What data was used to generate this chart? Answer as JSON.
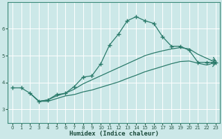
{
  "xlabel": "Humidex (Indice chaleur)",
  "bg_color": "#cce8e8",
  "grid_color": "#ffffff",
  "line_color": "#2a7a6a",
  "ylim": [
    2.5,
    7.0
  ],
  "xlim": [
    -0.5,
    23.5
  ],
  "yticks": [
    3,
    4,
    5,
    6
  ],
  "xticks": [
    0,
    1,
    2,
    3,
    4,
    5,
    6,
    7,
    8,
    9,
    10,
    11,
    12,
    13,
    14,
    15,
    16,
    17,
    18,
    19,
    20,
    21,
    22,
    23
  ],
  "line_main_x": [
    0,
    1,
    2,
    3,
    4,
    5,
    6,
    7,
    8,
    9,
    10,
    11,
    12,
    13,
    14,
    15,
    16,
    17,
    18,
    19,
    20,
    21,
    22,
    23
  ],
  "line_main_y": [
    3.8,
    3.8,
    3.6,
    3.3,
    3.35,
    3.55,
    3.6,
    3.85,
    4.2,
    4.25,
    4.7,
    5.4,
    5.8,
    6.3,
    6.45,
    6.3,
    6.2,
    5.7,
    5.35,
    5.35,
    5.2,
    4.75,
    4.75,
    4.75
  ],
  "line_upper_x": [
    2,
    3,
    4,
    5,
    6,
    7,
    8,
    9,
    10,
    11,
    12,
    13,
    14,
    15,
    16,
    17,
    18,
    19,
    20,
    21,
    22,
    23
  ],
  "line_upper_y": [
    3.6,
    3.3,
    3.35,
    3.5,
    3.6,
    3.75,
    3.95,
    4.1,
    4.25,
    4.4,
    4.55,
    4.7,
    4.85,
    5.0,
    5.1,
    5.18,
    5.25,
    5.3,
    5.25,
    5.05,
    4.9,
    4.75
  ],
  "line_lower_x": [
    2,
    3,
    4,
    5,
    6,
    7,
    8,
    9,
    10,
    11,
    12,
    13,
    14,
    15,
    16,
    17,
    18,
    19,
    20,
    21,
    22,
    23
  ],
  "line_lower_y": [
    3.6,
    3.3,
    3.3,
    3.4,
    3.5,
    3.55,
    3.65,
    3.72,
    3.82,
    3.92,
    4.02,
    4.15,
    4.27,
    4.4,
    4.5,
    4.6,
    4.7,
    4.78,
    4.8,
    4.72,
    4.65,
    4.75
  ]
}
